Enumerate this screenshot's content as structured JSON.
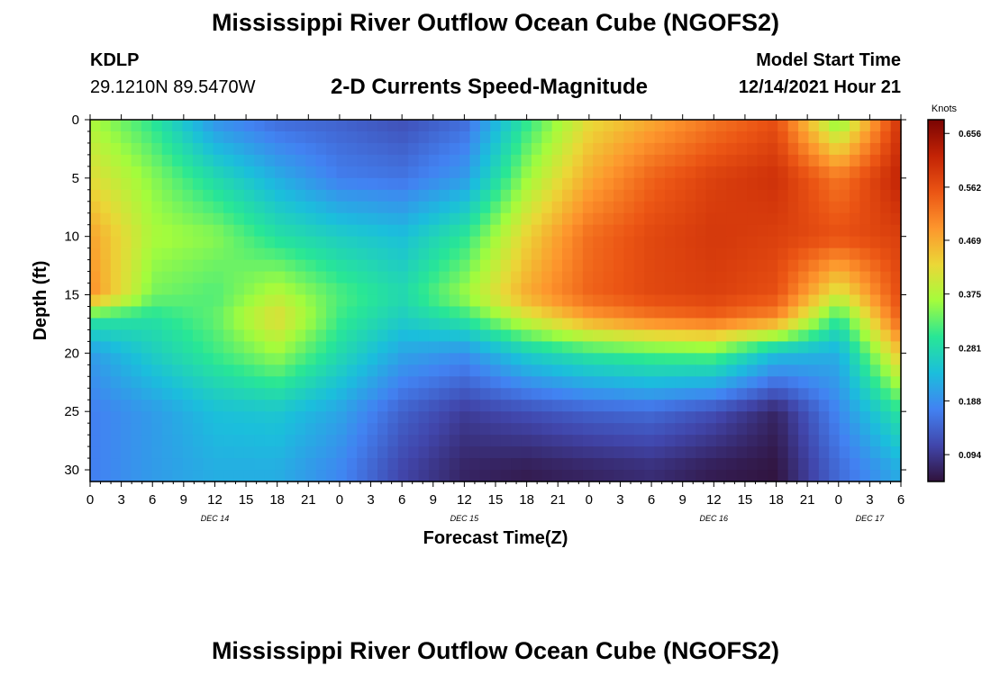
{
  "header": {
    "title": "Mississippi River Outflow Ocean Cube (NGOFS2)",
    "station_id": "KDLP",
    "station_coords": "29.1210N  89.5470W",
    "product": "2-D Currents Speed-Magnitude",
    "model_start_label": "Model Start Time",
    "model_start_value": "12/14/2021 Hour 21"
  },
  "footer": {
    "title": "Mississippi River Outflow Ocean Cube (NGOFS2)"
  },
  "chart_data": {
    "type": "heatmap",
    "title": "2-D Currents Speed-Magnitude",
    "xlabel": "Forecast Time(Z)",
    "ylabel": "Depth (ft)",
    "x_range_hours": [
      0,
      78
    ],
    "y_range_ft": [
      0,
      31
    ],
    "x_tick_labels": [
      "0",
      "3",
      "6",
      "9",
      "12",
      "15",
      "18",
      "21",
      "0",
      "3",
      "6",
      "9",
      "12",
      "15",
      "18",
      "21",
      "0",
      "3",
      "6",
      "9",
      "12",
      "15",
      "18",
      "21",
      "0",
      "3",
      "6"
    ],
    "y_ticks": [
      0,
      5,
      10,
      15,
      20,
      25,
      30
    ],
    "day_labels": [
      {
        "label": "DEC 14",
        "hour": 12
      },
      {
        "label": "DEC 15",
        "hour": 36
      },
      {
        "label": "DEC 16",
        "hour": 60
      },
      {
        "label": "DEC 17",
        "hour": 75
      }
    ],
    "colorbar": {
      "unit": "Knots",
      "min": 0.047,
      "max": 0.68,
      "tick_values": [
        0.656,
        0.562,
        0.469,
        0.375,
        0.281,
        0.188,
        0.094
      ],
      "tick_labels": [
        "0.656",
        "0.562",
        "0.469",
        "0.375",
        "0.281",
        "0.188",
        "0.094"
      ]
    },
    "speed_grid_knots": {
      "hours": [
        0,
        6,
        12,
        18,
        24,
        30,
        36,
        42,
        48,
        54,
        60,
        66,
        72,
        78
      ],
      "depths_ft": [
        0,
        5,
        10,
        15,
        17,
        20,
        25,
        30
      ],
      "values": [
        [
          0.37,
          0.3,
          0.19,
          0.15,
          0.14,
          0.12,
          0.15,
          0.3,
          0.42,
          0.47,
          0.52,
          0.56,
          0.34,
          0.6
        ],
        [
          0.42,
          0.35,
          0.28,
          0.22,
          0.17,
          0.16,
          0.2,
          0.36,
          0.47,
          0.54,
          0.58,
          0.6,
          0.52,
          0.62
        ],
        [
          0.48,
          0.37,
          0.35,
          0.29,
          0.26,
          0.24,
          0.3,
          0.43,
          0.53,
          0.57,
          0.59,
          0.58,
          0.56,
          0.58
        ],
        [
          0.5,
          0.34,
          0.32,
          0.38,
          0.32,
          0.28,
          0.36,
          0.47,
          0.54,
          0.57,
          0.58,
          0.56,
          0.4,
          0.57
        ],
        [
          0.3,
          0.29,
          0.33,
          0.42,
          0.31,
          0.26,
          0.3,
          0.4,
          0.48,
          0.52,
          0.54,
          0.5,
          0.3,
          0.55
        ],
        [
          0.2,
          0.26,
          0.31,
          0.36,
          0.28,
          0.21,
          0.19,
          0.26,
          0.3,
          0.32,
          0.33,
          0.24,
          0.22,
          0.45
        ],
        [
          0.17,
          0.2,
          0.24,
          0.25,
          0.21,
          0.14,
          0.1,
          0.12,
          0.14,
          0.15,
          0.12,
          0.07,
          0.18,
          0.3
        ],
        [
          0.17,
          0.2,
          0.22,
          0.22,
          0.18,
          0.11,
          0.07,
          0.06,
          0.07,
          0.08,
          0.06,
          0.05,
          0.15,
          0.22
        ]
      ]
    }
  }
}
